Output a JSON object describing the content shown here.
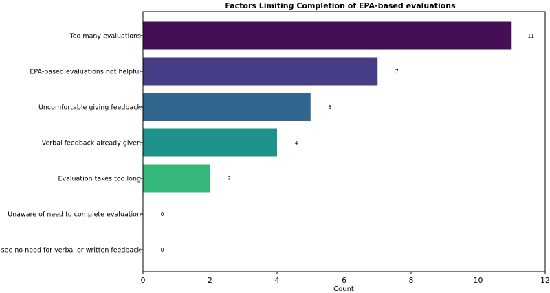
{
  "chart_data": {
    "type": "bar",
    "orientation": "horizontal",
    "title": "Factors Limiting Completion of EPA-based evaluations",
    "xlabel": "Count",
    "ylabel": "",
    "xlim": [
      0,
      12
    ],
    "x_ticks": [
      "0",
      "2",
      "4",
      "6",
      "8",
      "10",
      "12"
    ],
    "grid": false,
    "categories": [
      "Too many evaluations",
      "EPA-based evaluations not helpful",
      "Uncomfortable giving feedback",
      "Verbal feedback already given",
      "Evaluation takes too long",
      "Unaware of need to complete evaluation",
      "I see no need for verbal or written feedback"
    ],
    "values": [
      11,
      7,
      5,
      4,
      2,
      0,
      0
    ],
    "value_labels": [
      "11",
      "7",
      "5",
      "4",
      "2",
      "0",
      "0"
    ],
    "colors": [
      "#440f54",
      "#463d87",
      "#31678e",
      "#1f918b",
      "#35b779",
      "#8fd744",
      "#fde725"
    ]
  }
}
